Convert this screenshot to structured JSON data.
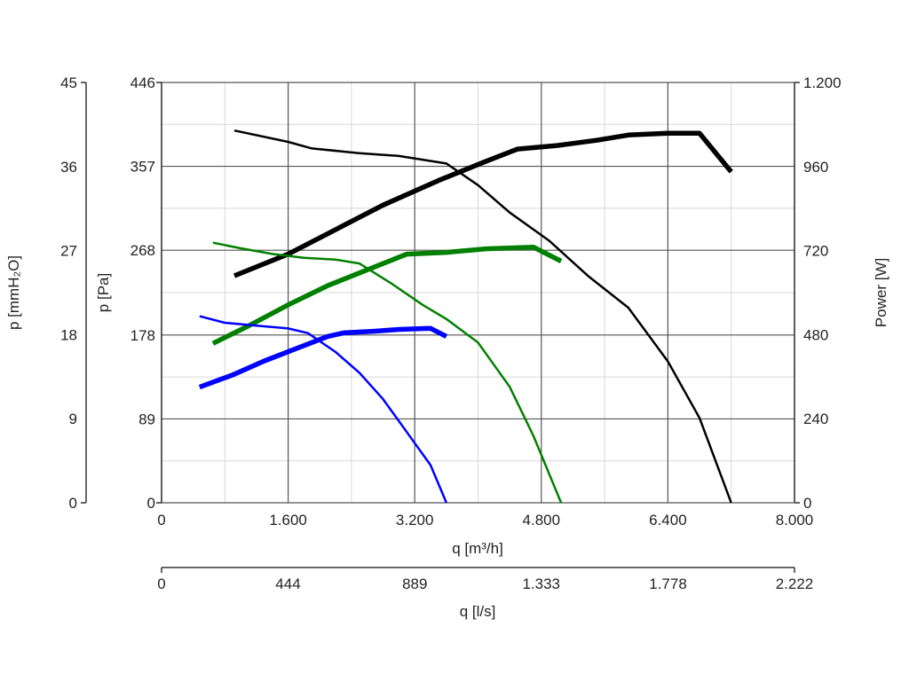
{
  "chart_data": {
    "type": "line",
    "grid": true,
    "axes": {
      "x_primary": {
        "label": "q [m³/h]",
        "range": [
          0,
          8000
        ],
        "ticks": [
          0,
          1600,
          3200,
          4800,
          6400,
          8000
        ],
        "tick_labels": [
          "0",
          "1.600",
          "3.200",
          "4.800",
          "6.400",
          "8.000"
        ]
      },
      "x_secondary": {
        "label": "q [l/s]",
        "range": [
          0,
          2222
        ],
        "ticks": [
          0,
          444,
          889,
          1333,
          1778,
          2222
        ],
        "tick_labels": [
          "0",
          "444",
          "889",
          "1.333",
          "1.778",
          "2.222"
        ]
      },
      "y_pa": {
        "label": "p [Pa]",
        "range": [
          0,
          446
        ],
        "ticks": [
          0,
          89,
          178,
          268,
          357,
          446
        ],
        "tick_labels": [
          "0",
          "89",
          "178",
          "268",
          "357",
          "446"
        ]
      },
      "y_mmh2o": {
        "label": "p [mmH₂O]",
        "range": [
          0,
          45
        ],
        "ticks": [
          0,
          9,
          18,
          27,
          36,
          45
        ],
        "tick_labels": [
          "0",
          "9",
          "18",
          "27",
          "36",
          "45"
        ]
      },
      "y_power": {
        "label": "Power [W]",
        "range": [
          0,
          1200
        ],
        "ticks": [
          0,
          240,
          480,
          720,
          960,
          1200
        ],
        "tick_labels": [
          "0",
          "240",
          "480",
          "720",
          "960",
          "1.200"
        ]
      }
    },
    "series": [
      {
        "kind": "pressure",
        "axis": "y_pa",
        "color": "#000000",
        "x": [
          920,
          1600,
          1900,
          2500,
          3000,
          3600,
          4000,
          4400,
          4900,
          5400,
          5900,
          6400,
          6800,
          7200
        ],
        "y": [
          395,
          383,
          376,
          371,
          368,
          360,
          337,
          308,
          278,
          240,
          207,
          150,
          90,
          0
        ]
      },
      {
        "kind": "power",
        "axis": "y_power",
        "color": "#000000",
        "x": [
          920,
          1600,
          2200,
          2800,
          3500,
          4100,
          4500,
          5000,
          5500,
          5900,
          6400,
          6800,
          7200
        ],
        "y": [
          648,
          710,
          780,
          850,
          920,
          975,
          1010,
          1020,
          1035,
          1050,
          1055,
          1055,
          945
        ]
      },
      {
        "kind": "pressure",
        "axis": "y_pa",
        "color": "#008000",
        "x": [
          650,
          1000,
          1400,
          1800,
          2200,
          2500,
          2900,
          3300,
          3600,
          4000,
          4400,
          4700,
          5050
        ],
        "y": [
          276,
          270,
          264,
          260,
          258,
          254,
          233,
          210,
          195,
          170,
          123,
          71,
          0
        ]
      },
      {
        "kind": "power",
        "axis": "y_power",
        "color": "#008000",
        "x": [
          650,
          1100,
          1600,
          2100,
          2600,
          3100,
          3600,
          4100,
          4700,
          5050
        ],
        "y": [
          455,
          505,
          565,
          620,
          665,
          710,
          715,
          725,
          730,
          690
        ]
      },
      {
        "kind": "pressure",
        "axis": "y_pa",
        "color": "#0000ff",
        "x": [
          480,
          800,
          1200,
          1600,
          1850,
          2200,
          2500,
          2800,
          3100,
          3400,
          3600
        ],
        "y": [
          198,
          191,
          188,
          185,
          180,
          160,
          138,
          110,
          75,
          40,
          0
        ]
      },
      {
        "kind": "power",
        "axis": "y_power",
        "color": "#0000ff",
        "x": [
          480,
          900,
          1300,
          1700,
          2100,
          2300,
          2700,
          3000,
          3400,
          3600
        ],
        "y": [
          330,
          365,
          405,
          440,
          475,
          485,
          490,
          495,
          498,
          475
        ]
      }
    ]
  }
}
